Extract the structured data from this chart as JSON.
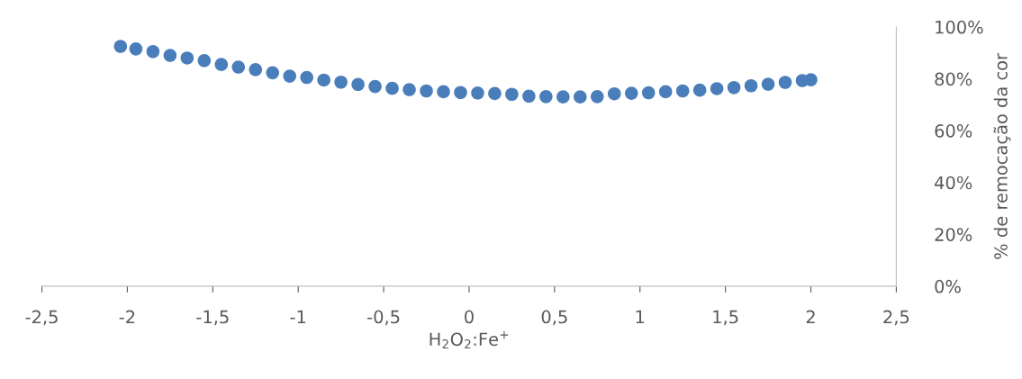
{
  "chart_data": {
    "type": "scatter",
    "xlabel": "H$_{2}$O$_{2}$:Fe$^{+}$",
    "ylabel": "% de remocação da cor",
    "marker": "circle",
    "grid": false,
    "xlim": [
      -2.5,
      2.5
    ],
    "xticks": [
      {
        "value": -2.5,
        "label": "-2,5"
      },
      {
        "value": -2,
        "label": "-2"
      },
      {
        "value": -1.5,
        "label": "-1,5"
      },
      {
        "value": -1,
        "label": "-1"
      },
      {
        "value": -0.5,
        "label": "-0,5"
      },
      0,
      {
        "value": 0.5,
        "label": "0,5"
      },
      1,
      {
        "value": 1.5,
        "label": "1,5"
      },
      2,
      {
        "value": 2.5,
        "label": "2,5"
      }
    ],
    "ylim": [
      0,
      100
    ],
    "yticks": [
      {
        "value": 0,
        "label": "0%"
      },
      {
        "value": 20,
        "label": "20%"
      },
      {
        "value": 40,
        "label": "40%"
      },
      {
        "value": 60,
        "label": "60%"
      },
      {
        "value": 80,
        "label": "80%"
      },
      {
        "value": 100,
        "label": "100%"
      }
    ],
    "x": [
      -2.04,
      -1.95,
      -1.85,
      -1.75,
      -1.65,
      -1.55,
      -1.45,
      -1.35,
      -1.25,
      -1.15,
      -1.05,
      -0.95,
      -0.85,
      -0.75,
      -0.65,
      -0.55,
      -0.45,
      -0.35,
      -0.25,
      -0.15,
      -0.05,
      0.05,
      0.15,
      0.25,
      0.35,
      0.45,
      0.55,
      0.65,
      0.75,
      0.85,
      0.95,
      1.05,
      1.15,
      1.25,
      1.35,
      1.45,
      1.55,
      1.65,
      1.75,
      1.85,
      1.95,
      2.0
    ],
    "series": [
      {
        "color": "#4a7ebb",
        "values": [
          92.5,
          91.5,
          90.5,
          89,
          88,
          87,
          85.5,
          84.5,
          83.5,
          82.3,
          81,
          80.5,
          79.5,
          78.7,
          77.8,
          77,
          76.3,
          75.8,
          75.3,
          75,
          74.7,
          74.5,
          74.3,
          74,
          73.3,
          73.1,
          73,
          73,
          73.1,
          74.2,
          74.4,
          74.6,
          75,
          75.3,
          75.6,
          76.2,
          76.6,
          77.3,
          77.9,
          78.6,
          79.3,
          79.6
        ]
      }
    ]
  }
}
